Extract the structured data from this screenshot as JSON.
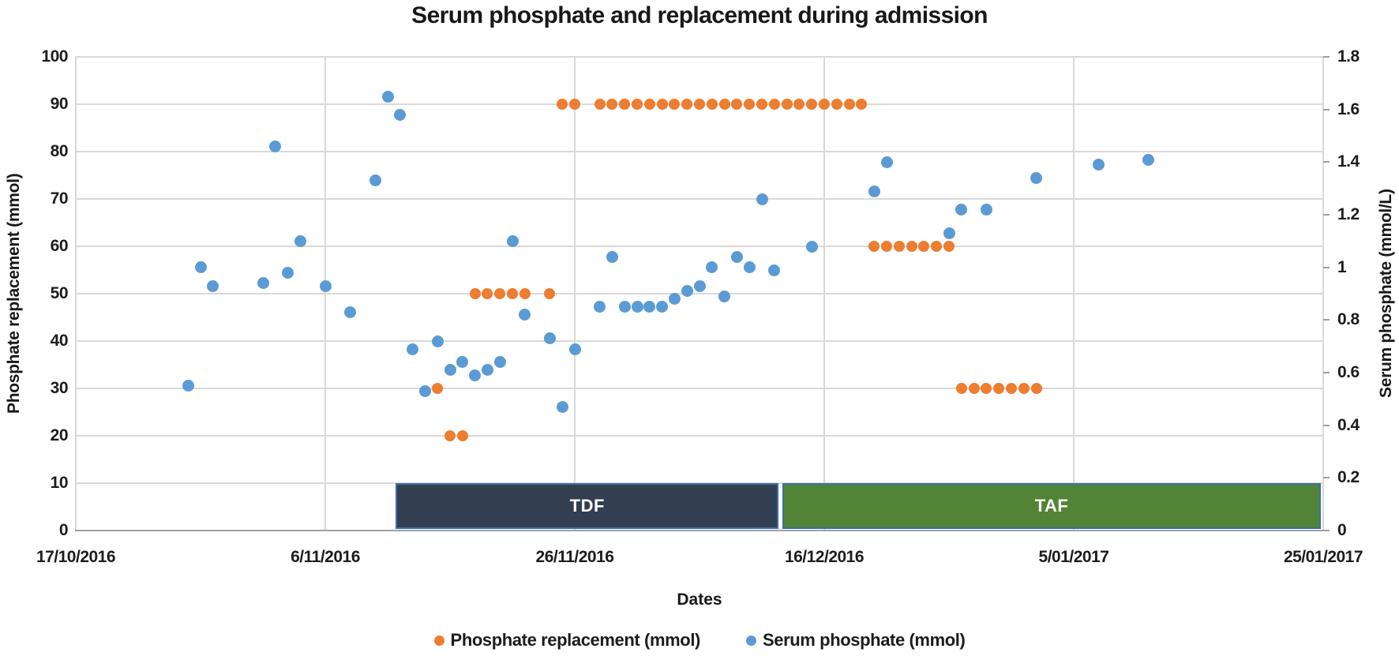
{
  "chart_data": {
    "type": "scatter",
    "title": "Serum phosphate and replacement during admission",
    "xlabel": "Dates",
    "ylabel_left": "Phosphate replacement (mmol)",
    "ylabel_right": "Serum phosphate (mmol/L)",
    "grid": true,
    "x_axis": {
      "start_date": "17/10/2016",
      "end_date": "25/01/2017",
      "tick_interval_days": 20,
      "tick_labels": [
        "17/10/2016",
        "6/11/2016",
        "26/11/2016",
        "16/12/2016",
        "5/01/2017",
        "25/01/2017"
      ]
    },
    "y_left": {
      "min": 0,
      "max": 100,
      "step": 10,
      "ticks": [
        "0",
        "10",
        "20",
        "30",
        "40",
        "50",
        "60",
        "70",
        "80",
        "90",
        "100"
      ]
    },
    "y_right": {
      "min": 0,
      "max": 1.8,
      "step": 0.2,
      "ticks": [
        "0",
        "0.2",
        "0.4",
        "0.6",
        "0.8",
        "1",
        "1.2",
        "1.4",
        "1.6",
        "1.8"
      ]
    },
    "legend": {
      "position": "bottom",
      "entries": [
        {
          "label": "Phosphate replacement (mmol)",
          "color": "#ED7D31"
        },
        {
          "label": "Serum phosphate (mmol)",
          "color": "#5B9BD5"
        }
      ]
    },
    "series": [
      {
        "name": "Phosphate replacement (mmol)",
        "axis": "left",
        "color": "#ED7D31",
        "points": [
          [
            "15/11/2016",
            30
          ],
          [
            "16/11/2016",
            20
          ],
          [
            "17/11/2016",
            20
          ],
          [
            "18/11/2016",
            50
          ],
          [
            "19/11/2016",
            50
          ],
          [
            "20/11/2016",
            50
          ],
          [
            "21/11/2016",
            50
          ],
          [
            "22/11/2016",
            50
          ],
          [
            "24/11/2016",
            50
          ],
          [
            "25/11/2016",
            90
          ],
          [
            "26/11/2016",
            90
          ],
          [
            "28/11/2016",
            90
          ],
          [
            "29/11/2016",
            90
          ],
          [
            "30/11/2016",
            90
          ],
          [
            "1/12/2016",
            90
          ],
          [
            "2/12/2016",
            90
          ],
          [
            "3/12/2016",
            90
          ],
          [
            "4/12/2016",
            90
          ],
          [
            "5/12/2016",
            90
          ],
          [
            "6/12/2016",
            90
          ],
          [
            "7/12/2016",
            90
          ],
          [
            "8/12/2016",
            90
          ],
          [
            "9/12/2016",
            90
          ],
          [
            "10/12/2016",
            90
          ],
          [
            "11/12/2016",
            90
          ],
          [
            "12/12/2016",
            90
          ],
          [
            "13/12/2016",
            90
          ],
          [
            "14/12/2016",
            90
          ],
          [
            "15/12/2016",
            90
          ],
          [
            "16/12/2016",
            90
          ],
          [
            "17/12/2016",
            90
          ],
          [
            "18/12/2016",
            90
          ],
          [
            "19/12/2016",
            90
          ],
          [
            "20/12/2016",
            60
          ],
          [
            "21/12/2016",
            60
          ],
          [
            "22/12/2016",
            60
          ],
          [
            "23/12/2016",
            60
          ],
          [
            "24/12/2016",
            60
          ],
          [
            "25/12/2016",
            60
          ],
          [
            "26/12/2016",
            60
          ],
          [
            "27/12/2016",
            30
          ],
          [
            "28/12/2016",
            30
          ],
          [
            "29/12/2016",
            30
          ],
          [
            "30/12/2016",
            30
          ],
          [
            "31/12/2016",
            30
          ],
          [
            "1/01/2017",
            30
          ],
          [
            "2/01/2017",
            30
          ]
        ]
      },
      {
        "name": "Serum phosphate (mmol)",
        "axis": "right",
        "color": "#5B9BD5",
        "points": [
          [
            "26/10/2016",
            0.55
          ],
          [
            "27/10/2016",
            1.0
          ],
          [
            "28/10/2016",
            0.93
          ],
          [
            "1/11/2016",
            0.94
          ],
          [
            "2/11/2016",
            1.46
          ],
          [
            "3/11/2016",
            0.98
          ],
          [
            "4/11/2016",
            1.1
          ],
          [
            "6/11/2016",
            0.93
          ],
          [
            "8/11/2016",
            0.83
          ],
          [
            "10/11/2016",
            1.33
          ],
          [
            "11/11/2016",
            1.65
          ],
          [
            "12/11/2016",
            1.58
          ],
          [
            "13/11/2016",
            0.69
          ],
          [
            "14/11/2016",
            0.53
          ],
          [
            "15/11/2016",
            0.72
          ],
          [
            "16/11/2016",
            0.61
          ],
          [
            "17/11/2016",
            0.64
          ],
          [
            "18/11/2016",
            0.59
          ],
          [
            "19/11/2016",
            0.61
          ],
          [
            "20/11/2016",
            0.64
          ],
          [
            "21/11/2016",
            1.1
          ],
          [
            "22/11/2016",
            0.82
          ],
          [
            "24/11/2016",
            0.73
          ],
          [
            "25/11/2016",
            0.47
          ],
          [
            "26/11/2016",
            0.69
          ],
          [
            "28/11/2016",
            0.85
          ],
          [
            "29/11/2016",
            1.04
          ],
          [
            "30/11/2016",
            0.85
          ],
          [
            "1/12/2016",
            0.85
          ],
          [
            "2/12/2016",
            0.85
          ],
          [
            "3/12/2016",
            0.85
          ],
          [
            "4/12/2016",
            0.88
          ],
          [
            "5/12/2016",
            0.91
          ],
          [
            "6/12/2016",
            0.93
          ],
          [
            "7/12/2016",
            1.0
          ],
          [
            "8/12/2016",
            0.89
          ],
          [
            "9/12/2016",
            1.04
          ],
          [
            "10/12/2016",
            1.0
          ],
          [
            "11/12/2016",
            1.26
          ],
          [
            "12/12/2016",
            0.99
          ],
          [
            "15/12/2016",
            1.08
          ],
          [
            "20/12/2016",
            1.29
          ],
          [
            "21/12/2016",
            1.4
          ],
          [
            "26/12/2016",
            1.13
          ],
          [
            "27/12/2016",
            1.22
          ],
          [
            "29/12/2016",
            1.22
          ],
          [
            "2/01/2017",
            1.34
          ],
          [
            "7/01/2017",
            1.39
          ],
          [
            "11/01/2017",
            1.41
          ]
        ]
      }
    ],
    "bands": [
      {
        "label": "TDF",
        "start": "12/11/2016",
        "end": "12/12/2016",
        "y_from": 0,
        "y_to": 10,
        "fill": "#333F50",
        "border": "#3A6FAD",
        "text_color": "#FFFFFF"
      },
      {
        "label": "TAF",
        "start": "13/12/2016",
        "end": "25/01/2017",
        "y_from": 0,
        "y_to": 10,
        "fill": "#528436",
        "border": "#3A6FAD",
        "text_color": "#FFFFFF"
      }
    ]
  }
}
